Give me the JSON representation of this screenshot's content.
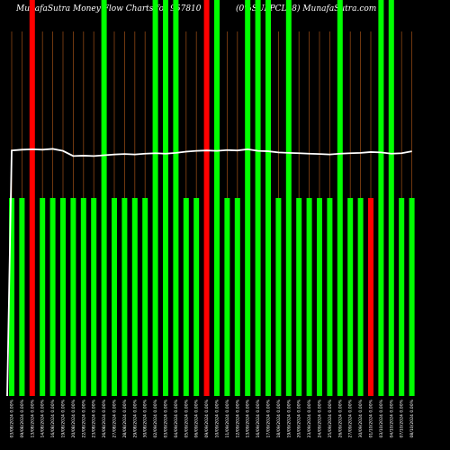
{
  "chart_data": {
    "type": "bar",
    "title_left": "MunafaSutra  Money Flow  Charts for 957810",
    "title_right": "(0%SUPPCL28) MunafaSutra.com",
    "ylim": [
      0,
      100
    ],
    "colors": {
      "up": "#00ff00",
      "down": "#ff0000",
      "line": "#ffffff",
      "grid": "#8B4513",
      "background": "#000000"
    },
    "categories": [
      "03/08/2024 0.00%",
      "09/08/2024 0.00%",
      "13/08/2024 0.00%",
      "14/08/2024 0.00%",
      "16/08/2024 0.00%",
      "19/08/2024 0.00%",
      "20/08/2024 0.00%",
      "22/08/2024 0.00%",
      "23/08/2024 0.00%",
      "26/08/2024 0.00%",
      "27/08/2024 0.00%",
      "28/08/2024 0.00%",
      "29/08/2024 0.00%",
      "30/08/2024 0.00%",
      "02/09/2024 0.00%",
      "03/09/2024 0.00%",
      "04/09/2024 0.00%",
      "05/09/2024 0.00%",
      "06/09/2024 0.00%",
      "09/09/2024 0.00%",
      "10/09/2024 0.00%",
      "11/09/2024 0.00%",
      "12/09/2024 0.00%",
      "13/09/2024 0.00%",
      "16/09/2024 0.00%",
      "17/09/2024 0.00%",
      "18/09/2024 0.00%",
      "19/09/2024 0.00%",
      "20/09/2024 0.00%",
      "23/09/2024 0.00%",
      "24/09/2024 0.00%",
      "25/09/2024 0.00%",
      "26/09/2024 0.00%",
      "27/09/2024 0.00%",
      "30/09/2024 0.00%",
      "01/10/2024 0.00%",
      "03/10/2024 0.00%",
      "04/10/2024 0.00%",
      "07/10/2024 0.00%",
      "08/10/2024 0.00%"
    ],
    "series": [
      {
        "values": [
          50,
          50,
          100,
          50,
          50,
          50,
          50,
          50,
          50,
          100,
          50,
          50,
          50,
          50,
          100,
          100,
          100,
          50,
          50,
          100,
          100,
          50,
          50,
          100,
          100,
          100,
          50,
          100,
          50,
          50,
          50,
          50,
          100,
          50,
          50,
          50,
          100,
          100,
          50,
          50
        ],
        "direction": [
          "up",
          "up",
          "down",
          "up",
          "up",
          "up",
          "up",
          "up",
          "up",
          "up",
          "up",
          "up",
          "up",
          "up",
          "up",
          "up",
          "up",
          "up",
          "up",
          "down",
          "up",
          "up",
          "up",
          "up",
          "up",
          "up",
          "up",
          "up",
          "up",
          "up",
          "up",
          "up",
          "up",
          "up",
          "up",
          "down",
          "up",
          "up",
          "up",
          "up"
        ]
      },
      {
        "type": "line",
        "values": [
          62.0,
          62.2,
          62.3,
          62.2,
          62.4,
          61.9,
          60.6,
          60.7,
          60.6,
          60.8,
          61.0,
          61.1,
          61.0,
          61.2,
          61.3,
          61.2,
          61.4,
          61.7,
          61.9,
          62.0,
          61.9,
          62.1,
          62.0,
          62.3,
          61.9,
          61.8,
          61.5,
          61.4,
          61.3,
          61.2,
          61.1,
          61.0,
          61.2,
          61.3,
          61.4,
          61.6,
          61.5,
          61.2,
          61.3,
          61.8
        ]
      }
    ]
  }
}
